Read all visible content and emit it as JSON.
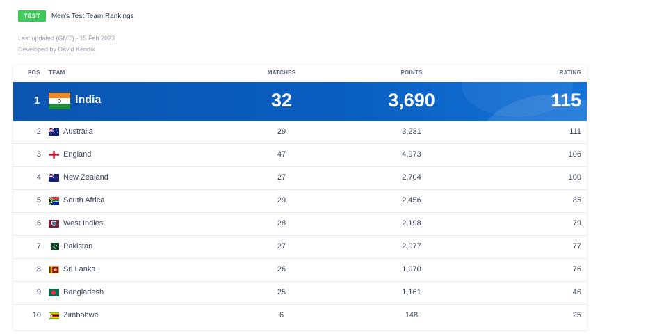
{
  "header": {
    "badge": "TEST",
    "title": "Men's Test Team Rankings",
    "last_updated": "Last updated (GMT) - 15 Feb 2023",
    "developed_by": "Developed by David Kendix"
  },
  "columns": {
    "pos": "POS",
    "team": "TEAM",
    "matches": "MATCHES",
    "points": "POINTS",
    "rating": "RATING"
  },
  "top": {
    "pos": "1",
    "team": "India",
    "matches": "32",
    "points": "3,690",
    "rating": "115",
    "flag": "india-flag-icon"
  },
  "rows": [
    {
      "pos": "2",
      "team": "Australia",
      "matches": "29",
      "points": "3,231",
      "rating": "111",
      "flag": "australia-flag-icon"
    },
    {
      "pos": "3",
      "team": "England",
      "matches": "47",
      "points": "4,973",
      "rating": "106",
      "flag": "england-flag-icon"
    },
    {
      "pos": "4",
      "team": "New Zealand",
      "matches": "27",
      "points": "2,704",
      "rating": "100",
      "flag": "new-zealand-flag-icon"
    },
    {
      "pos": "5",
      "team": "South Africa",
      "matches": "29",
      "points": "2,456",
      "rating": "85",
      "flag": "south-africa-flag-icon"
    },
    {
      "pos": "6",
      "team": "West Indies",
      "matches": "28",
      "points": "2,198",
      "rating": "79",
      "flag": "west-indies-flag-icon"
    },
    {
      "pos": "7",
      "team": "Pakistan",
      "matches": "27",
      "points": "2,077",
      "rating": "77",
      "flag": "pakistan-flag-icon"
    },
    {
      "pos": "8",
      "team": "Sri Lanka",
      "matches": "26",
      "points": "1,970",
      "rating": "76",
      "flag": "sri-lanka-flag-icon"
    },
    {
      "pos": "9",
      "team": "Bangladesh",
      "matches": "25",
      "points": "1,161",
      "rating": "46",
      "flag": "bangladesh-flag-icon"
    },
    {
      "pos": "10",
      "team": "Zimbabwe",
      "matches": "6",
      "points": "148",
      "rating": "25",
      "flag": "zimbabwe-flag-icon"
    }
  ],
  "colors": {
    "badge": "#3ec95b",
    "highlight": "#0a5fc2",
    "text": "#1f2a44",
    "muted": "#9aa1ad"
  }
}
